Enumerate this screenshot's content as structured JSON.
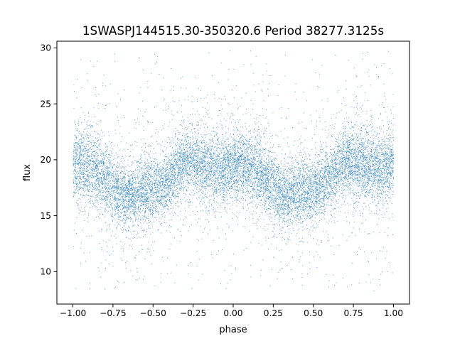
{
  "chart_data": {
    "type": "scatter",
    "title": "1SWASPJ144515.30-350320.6 Period 38277.3125s",
    "xlabel": "phase",
    "ylabel": "flux",
    "xlim": [
      -1.1,
      1.1
    ],
    "ylim": [
      7.1,
      30.6
    ],
    "xticks": [
      -1.0,
      -0.75,
      -0.5,
      -0.25,
      0.0,
      0.25,
      0.5,
      0.75,
      1.0
    ],
    "xtick_labels": [
      "−1.00",
      "−0.75",
      "−0.50",
      "−0.25",
      "0.00",
      "0.25",
      "0.50",
      "0.75",
      "1.00"
    ],
    "yticks": [
      10,
      15,
      20,
      25,
      30
    ],
    "ytick_labels": [
      "10",
      "15",
      "20",
      "25",
      "30"
    ],
    "grid": false,
    "point_color": "#1f77b4",
    "x_range": [
      -1.0,
      1.0
    ],
    "y_clip": [
      8.3,
      29.8
    ],
    "folded_profile": {
      "phase": [
        0.0,
        0.05,
        0.1,
        0.15,
        0.2,
        0.25,
        0.3,
        0.35,
        0.4,
        0.45,
        0.5,
        0.55,
        0.6,
        0.65,
        0.7,
        0.75,
        0.8,
        0.85,
        0.9,
        0.95,
        1.0
      ],
      "center": [
        19.6,
        19.6,
        19.4,
        19.0,
        18.4,
        17.6,
        17.0,
        16.9,
        17.0,
        17.2,
        17.4,
        17.6,
        18.2,
        19.3,
        19.9,
        19.8,
        19.6,
        19.4,
        19.2,
        19.2,
        19.6
      ],
      "half_width": [
        2.3,
        2.4,
        2.5,
        2.5,
        2.4,
        2.3,
        2.2,
        2.2,
        2.3,
        2.3,
        2.3,
        2.3,
        2.2,
        2.2,
        2.2,
        2.3,
        2.4,
        2.4,
        2.4,
        2.3,
        2.3
      ]
    }
  }
}
